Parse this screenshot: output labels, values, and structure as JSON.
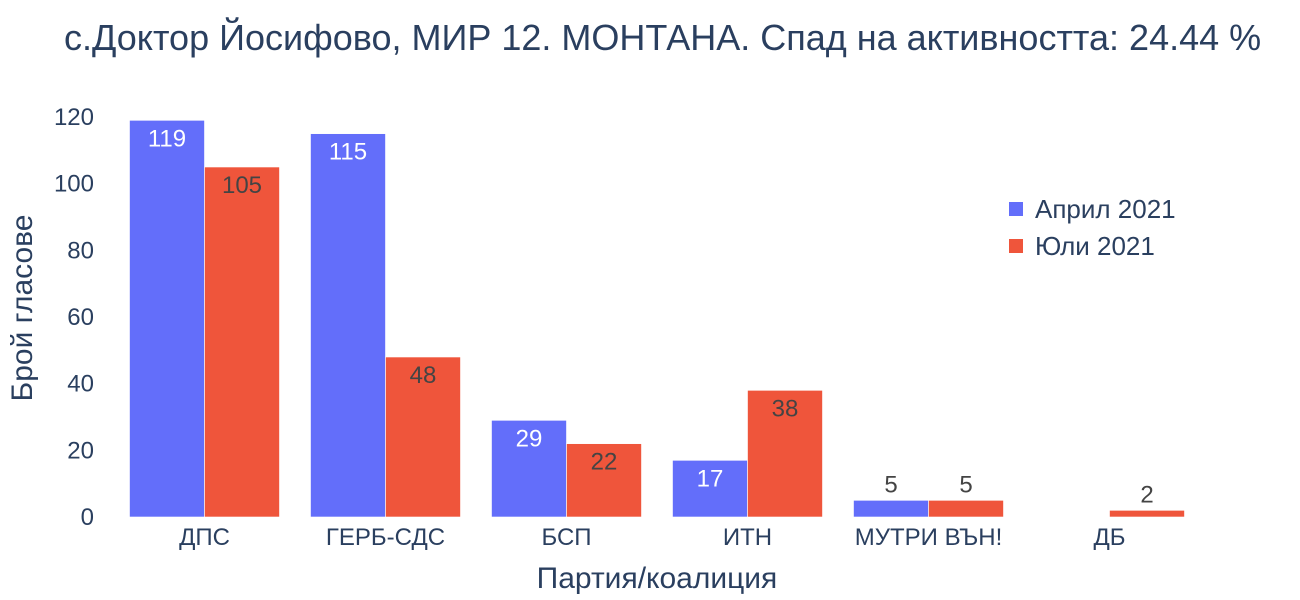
{
  "chart_data": {
    "type": "bar",
    "title": "с.Доктор Йосифово, МИР 12. МОНТАНА. Спад на активността: 24.44 %",
    "xlabel": "Партия/коалиция",
    "ylabel": "Брой гласове",
    "categories": [
      "ДПС",
      "ГЕРБ-СДС",
      "БСП",
      "ИТН",
      "МУТРИ ВЪН!",
      "ДБ"
    ],
    "series": [
      {
        "name": "Април 2021",
        "values": [
          119,
          115,
          29,
          17,
          5,
          0
        ],
        "color": "#636efa"
      },
      {
        "name": "Юли 2021",
        "values": [
          105,
          48,
          22,
          38,
          5,
          2
        ],
        "color": "#ef553b"
      }
    ],
    "ylim": [
      0,
      120
    ],
    "yticks": [
      0,
      20,
      40,
      60,
      80,
      100,
      120
    ],
    "grid": false,
    "legend_position": "top-right"
  }
}
